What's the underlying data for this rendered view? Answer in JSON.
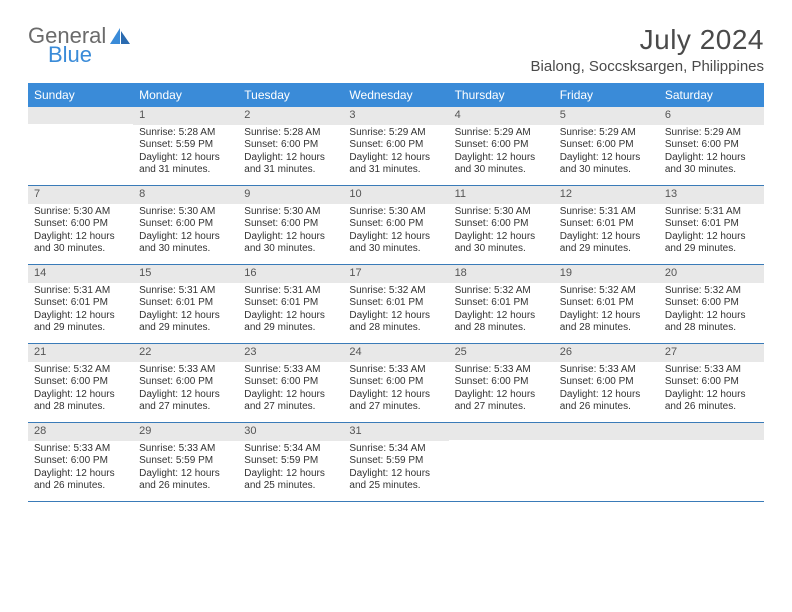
{
  "logo": {
    "top": "General",
    "bottom": "Blue"
  },
  "title": "July 2024",
  "location": "Bialong, Soccsksargen, Philippines",
  "colors": {
    "headerBlue": "#3a8bd8",
    "borderBlue": "#3a7bb8",
    "grayBar": "#e8e8e8",
    "textDark": "#333333",
    "logoGray": "#6b6b6b"
  },
  "dayHeaders": [
    "Sunday",
    "Monday",
    "Tuesday",
    "Wednesday",
    "Thursday",
    "Friday",
    "Saturday"
  ],
  "weeks": [
    [
      {
        "day": "",
        "lines": []
      },
      {
        "day": "1",
        "lines": [
          "Sunrise: 5:28 AM",
          "Sunset: 5:59 PM",
          "Daylight: 12 hours and 31 minutes."
        ]
      },
      {
        "day": "2",
        "lines": [
          "Sunrise: 5:28 AM",
          "Sunset: 6:00 PM",
          "Daylight: 12 hours and 31 minutes."
        ]
      },
      {
        "day": "3",
        "lines": [
          "Sunrise: 5:29 AM",
          "Sunset: 6:00 PM",
          "Daylight: 12 hours and 31 minutes."
        ]
      },
      {
        "day": "4",
        "lines": [
          "Sunrise: 5:29 AM",
          "Sunset: 6:00 PM",
          "Daylight: 12 hours and 30 minutes."
        ]
      },
      {
        "day": "5",
        "lines": [
          "Sunrise: 5:29 AM",
          "Sunset: 6:00 PM",
          "Daylight: 12 hours and 30 minutes."
        ]
      },
      {
        "day": "6",
        "lines": [
          "Sunrise: 5:29 AM",
          "Sunset: 6:00 PM",
          "Daylight: 12 hours and 30 minutes."
        ]
      }
    ],
    [
      {
        "day": "7",
        "lines": [
          "Sunrise: 5:30 AM",
          "Sunset: 6:00 PM",
          "Daylight: 12 hours and 30 minutes."
        ]
      },
      {
        "day": "8",
        "lines": [
          "Sunrise: 5:30 AM",
          "Sunset: 6:00 PM",
          "Daylight: 12 hours and 30 minutes."
        ]
      },
      {
        "day": "9",
        "lines": [
          "Sunrise: 5:30 AM",
          "Sunset: 6:00 PM",
          "Daylight: 12 hours and 30 minutes."
        ]
      },
      {
        "day": "10",
        "lines": [
          "Sunrise: 5:30 AM",
          "Sunset: 6:00 PM",
          "Daylight: 12 hours and 30 minutes."
        ]
      },
      {
        "day": "11",
        "lines": [
          "Sunrise: 5:30 AM",
          "Sunset: 6:00 PM",
          "Daylight: 12 hours and 30 minutes."
        ]
      },
      {
        "day": "12",
        "lines": [
          "Sunrise: 5:31 AM",
          "Sunset: 6:01 PM",
          "Daylight: 12 hours and 29 minutes."
        ]
      },
      {
        "day": "13",
        "lines": [
          "Sunrise: 5:31 AM",
          "Sunset: 6:01 PM",
          "Daylight: 12 hours and 29 minutes."
        ]
      }
    ],
    [
      {
        "day": "14",
        "lines": [
          "Sunrise: 5:31 AM",
          "Sunset: 6:01 PM",
          "Daylight: 12 hours and 29 minutes."
        ]
      },
      {
        "day": "15",
        "lines": [
          "Sunrise: 5:31 AM",
          "Sunset: 6:01 PM",
          "Daylight: 12 hours and 29 minutes."
        ]
      },
      {
        "day": "16",
        "lines": [
          "Sunrise: 5:31 AM",
          "Sunset: 6:01 PM",
          "Daylight: 12 hours and 29 minutes."
        ]
      },
      {
        "day": "17",
        "lines": [
          "Sunrise: 5:32 AM",
          "Sunset: 6:01 PM",
          "Daylight: 12 hours and 28 minutes."
        ]
      },
      {
        "day": "18",
        "lines": [
          "Sunrise: 5:32 AM",
          "Sunset: 6:01 PM",
          "Daylight: 12 hours and 28 minutes."
        ]
      },
      {
        "day": "19",
        "lines": [
          "Sunrise: 5:32 AM",
          "Sunset: 6:01 PM",
          "Daylight: 12 hours and 28 minutes."
        ]
      },
      {
        "day": "20",
        "lines": [
          "Sunrise: 5:32 AM",
          "Sunset: 6:00 PM",
          "Daylight: 12 hours and 28 minutes."
        ]
      }
    ],
    [
      {
        "day": "21",
        "lines": [
          "Sunrise: 5:32 AM",
          "Sunset: 6:00 PM",
          "Daylight: 12 hours and 28 minutes."
        ]
      },
      {
        "day": "22",
        "lines": [
          "Sunrise: 5:33 AM",
          "Sunset: 6:00 PM",
          "Daylight: 12 hours and 27 minutes."
        ]
      },
      {
        "day": "23",
        "lines": [
          "Sunrise: 5:33 AM",
          "Sunset: 6:00 PM",
          "Daylight: 12 hours and 27 minutes."
        ]
      },
      {
        "day": "24",
        "lines": [
          "Sunrise: 5:33 AM",
          "Sunset: 6:00 PM",
          "Daylight: 12 hours and 27 minutes."
        ]
      },
      {
        "day": "25",
        "lines": [
          "Sunrise: 5:33 AM",
          "Sunset: 6:00 PM",
          "Daylight: 12 hours and 27 minutes."
        ]
      },
      {
        "day": "26",
        "lines": [
          "Sunrise: 5:33 AM",
          "Sunset: 6:00 PM",
          "Daylight: 12 hours and 26 minutes."
        ]
      },
      {
        "day": "27",
        "lines": [
          "Sunrise: 5:33 AM",
          "Sunset: 6:00 PM",
          "Daylight: 12 hours and 26 minutes."
        ]
      }
    ],
    [
      {
        "day": "28",
        "lines": [
          "Sunrise: 5:33 AM",
          "Sunset: 6:00 PM",
          "Daylight: 12 hours and 26 minutes."
        ]
      },
      {
        "day": "29",
        "lines": [
          "Sunrise: 5:33 AM",
          "Sunset: 5:59 PM",
          "Daylight: 12 hours and 26 minutes."
        ]
      },
      {
        "day": "30",
        "lines": [
          "Sunrise: 5:34 AM",
          "Sunset: 5:59 PM",
          "Daylight: 12 hours and 25 minutes."
        ]
      },
      {
        "day": "31",
        "lines": [
          "Sunrise: 5:34 AM",
          "Sunset: 5:59 PM",
          "Daylight: 12 hours and 25 minutes."
        ]
      },
      {
        "day": "",
        "lines": []
      },
      {
        "day": "",
        "lines": []
      },
      {
        "day": "",
        "lines": []
      }
    ]
  ]
}
